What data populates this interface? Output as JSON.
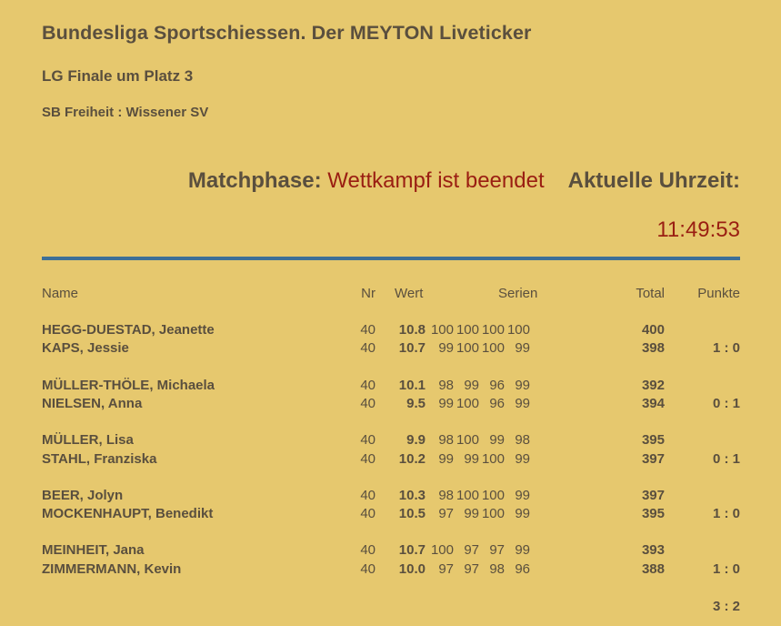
{
  "header": {
    "title": "Bundesliga Sportschiessen. Der MEYTON Liveticker",
    "subtitle": "LG Finale um Platz 3",
    "teams": "SB Freiheit : Wissener SV"
  },
  "status": {
    "phase_label": "Matchphase:",
    "phase_value": "Wettkampf ist beendet",
    "time_label": "Aktuelle Uhrzeit:",
    "time_value": "11:49:53"
  },
  "colors": {
    "background": "#e6c86e",
    "text": "#5a4f3e",
    "accent_red": "#9a1e12",
    "divider_blue": "#3d6f97"
  },
  "table": {
    "columns": {
      "name": "Name",
      "nr": "Nr",
      "wert": "Wert",
      "serien": "Serien",
      "total": "Total",
      "punkte": "Punkte"
    },
    "duels": [
      {
        "shooters": [
          {
            "name": "HEGG-DUESTAD, Jeanette",
            "nr": "40",
            "wert": "10.8",
            "serien": [
              "100",
              "100",
              "100",
              "100"
            ],
            "total": "400",
            "punkte": ""
          },
          {
            "name": "KAPS, Jessie",
            "nr": "40",
            "wert": "10.7",
            "serien": [
              "99",
              "100",
              "100",
              "99"
            ],
            "total": "398",
            "punkte": "1 : 0"
          }
        ]
      },
      {
        "shooters": [
          {
            "name": "MÜLLER-THÖLE, Michaela",
            "nr": "40",
            "wert": "10.1",
            "serien": [
              "98",
              "99",
              "96",
              "99"
            ],
            "total": "392",
            "punkte": ""
          },
          {
            "name": "NIELSEN, Anna",
            "nr": "40",
            "wert": "9.5",
            "serien": [
              "99",
              "100",
              "96",
              "99"
            ],
            "total": "394",
            "punkte": "0 : 1"
          }
        ]
      },
      {
        "shooters": [
          {
            "name": "MÜLLER, Lisa",
            "nr": "40",
            "wert": "9.9",
            "serien": [
              "98",
              "100",
              "99",
              "98"
            ],
            "total": "395",
            "punkte": ""
          },
          {
            "name": "STAHL, Franziska",
            "nr": "40",
            "wert": "10.2",
            "serien": [
              "99",
              "99",
              "100",
              "99"
            ],
            "total": "397",
            "punkte": "0 : 1"
          }
        ]
      },
      {
        "shooters": [
          {
            "name": "BEER, Jolyn",
            "nr": "40",
            "wert": "10.3",
            "serien": [
              "98",
              "100",
              "100",
              "99"
            ],
            "total": "397",
            "punkte": ""
          },
          {
            "name": "MOCKENHAUPT, Benedikt",
            "nr": "40",
            "wert": "10.5",
            "serien": [
              "97",
              "99",
              "100",
              "99"
            ],
            "total": "395",
            "punkte": "1 : 0"
          }
        ]
      },
      {
        "shooters": [
          {
            "name": "MEINHEIT, Jana",
            "nr": "40",
            "wert": "10.7",
            "serien": [
              "100",
              "97",
              "97",
              "99"
            ],
            "total": "393",
            "punkte": ""
          },
          {
            "name": "ZIMMERMANN, Kevin",
            "nr": "40",
            "wert": "10.0",
            "serien": [
              "97",
              "97",
              "98",
              "96"
            ],
            "total": "388",
            "punkte": "1 : 0"
          }
        ]
      }
    ],
    "final_score": "3 : 2"
  }
}
